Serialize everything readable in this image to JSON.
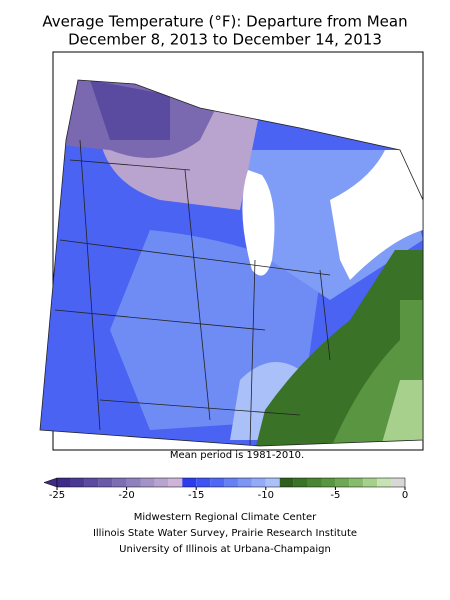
{
  "title": [
    "Average Temperature (°F): Departure from Mean",
    "December 8, 2013 to December 14, 2013"
  ],
  "note": "Mean period is 1981-2010.",
  "colorbar": {
    "bins": [
      -25,
      -24,
      -23,
      -22,
      -21,
      -20,
      -19,
      -18,
      -17,
      -16,
      -15,
      -14,
      -13,
      -12,
      -11,
      -10,
      -9,
      -8,
      -7,
      -6,
      -5,
      -4,
      -3,
      -2,
      -1,
      0
    ],
    "colors": [
      "#3f2a88",
      "#4a3a95",
      "#5a4aa0",
      "#6b5aa8",
      "#7d6db4",
      "#8f80be",
      "#a592c6",
      "#b9a3cf",
      "#cdb4d8",
      "#2e3cf0",
      "#3f55f2",
      "#5068f4",
      "#6680f5",
      "#7c96f6",
      "#93aaf7",
      "#aac0f8",
      "#2d5e1c",
      "#3a7328",
      "#4a8434",
      "#5a9542",
      "#6fa854",
      "#88bb6c",
      "#a6d08c",
      "#c8e2b4",
      "#d8d8d8"
    ],
    "ticks": [
      -25,
      -20,
      -15,
      -10,
      -5,
      0
    ]
  },
  "credits": [
    "Midwestern Regional Climate Center",
    "Illinois State Water Survey, Prairie Research Institute",
    "University of Illinois at Urbana-Champaign"
  ]
}
